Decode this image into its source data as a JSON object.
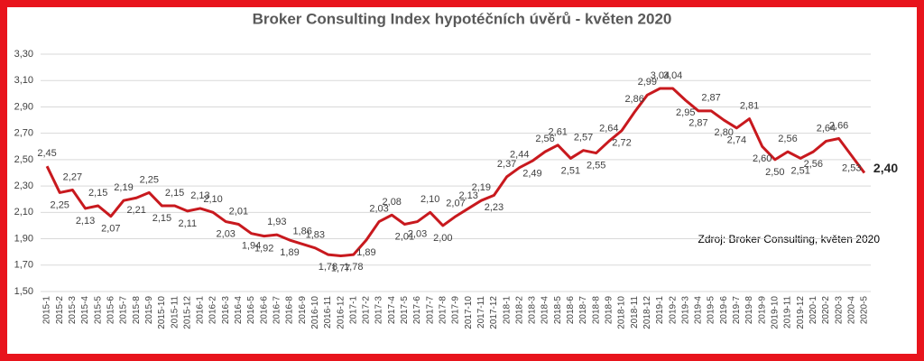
{
  "chart_data": {
    "type": "line",
    "title": "Broker Consulting Index hypotéčních úvěrů - květen 2020",
    "annotation": "Zdroj: Broker Consulting, květen 2020",
    "categories": [
      "2015-1",
      "2015-2",
      "2015-3",
      "2015-4",
      "2015-5",
      "2015-6",
      "2015-7",
      "2015-8",
      "2015-9",
      "2015-10",
      "2015-11",
      "2015-12",
      "2016-1",
      "2016-2",
      "2016-3",
      "2016-4",
      "2016-5",
      "2016-6",
      "2016-7",
      "2016-8",
      "2016-9",
      "2016-10",
      "2016-11",
      "2016-12",
      "2017-1",
      "2017-2",
      "2017-3",
      "2017-4",
      "2017-5",
      "2017-6",
      "2017-7",
      "2017-8",
      "2017-9",
      "2017-10",
      "2017-11",
      "2017-12",
      "2018-1",
      "2018-2",
      "2018-3",
      "2018-4",
      "2018-5",
      "2018-6",
      "2018-7",
      "2018-8",
      "2018-9",
      "2018-10",
      "2018-11",
      "2018-12",
      "2019-1",
      "2019-2",
      "2019-3",
      "2019-4",
      "2019-5",
      "2019-6",
      "2019-7",
      "2019-8",
      "2019-9",
      "2019-10",
      "2019-11",
      "2019-12",
      "2020-1",
      "2020-2",
      "2020-3",
      "2020-4",
      "2020-5"
    ],
    "series": [
      {
        "name": "Index",
        "color": "#c8191e",
        "values": [
          2.45,
          2.25,
          2.27,
          2.13,
          2.15,
          2.07,
          2.19,
          2.21,
          2.25,
          2.15,
          2.15,
          2.11,
          2.13,
          2.1,
          2.03,
          2.01,
          1.94,
          1.92,
          1.93,
          1.89,
          1.86,
          1.83,
          1.78,
          1.77,
          1.78,
          1.89,
          2.03,
          2.08,
          2.01,
          2.03,
          2.1,
          2.0,
          2.07,
          2.13,
          2.19,
          2.23,
          2.37,
          2.44,
          2.49,
          2.56,
          2.61,
          2.51,
          2.57,
          2.55,
          2.64,
          2.72,
          2.86,
          2.99,
          3.04,
          3.04,
          2.95,
          2.87,
          2.87,
          2.8,
          2.74,
          2.81,
          2.6,
          2.5,
          2.56,
          2.51,
          2.56,
          2.64,
          2.66,
          2.53,
          2.4
        ],
        "value_labels": [
          "2,45",
          "2,25",
          "2,27",
          "2,13",
          "2,15",
          "2,07",
          "2,19",
          "2,21",
          "2,25",
          "2,15",
          "2,15",
          "2,11",
          "2,13",
          "2,10",
          "2,03",
          "2,01",
          "1,94",
          "1,92",
          "1,93",
          "1,89",
          "1,86",
          "1,83",
          "1,78",
          "1,77",
          "1,78",
          "1,89",
          "2,03",
          "2,08",
          "2,01",
          "2,03",
          "2,10",
          "2,00",
          "2,07",
          "2,13",
          "2,19",
          "2,23",
          "2,37",
          "2,44",
          "2,49",
          "2,56",
          "2,61",
          "2,51",
          "2,57",
          "2,55",
          "2,64",
          "2,72",
          "2,86",
          "2,99",
          "3,04",
          "3,04",
          "2,95",
          "2,87",
          "2,87",
          "2,80",
          "2,74",
          "2,81",
          "2,60",
          "2,50",
          "2,56",
          "2,51",
          "2,56",
          "2,64",
          "2,66",
          "2,53",
          "2,40"
        ]
      }
    ],
    "ylim": [
      1.5,
      3.3
    ],
    "yticks": [
      {
        "value": 1.5,
        "label": "1,50"
      },
      {
        "value": 1.7,
        "label": "1,70"
      },
      {
        "value": 1.9,
        "label": "1,90"
      },
      {
        "value": 2.1,
        "label": "2,10"
      },
      {
        "value": 2.3,
        "label": "2,30"
      },
      {
        "value": 2.5,
        "label": "2,50"
      },
      {
        "value": 2.7,
        "label": "2,70"
      },
      {
        "value": 2.9,
        "label": "2,90"
      },
      {
        "value": 3.1,
        "label": "3,10"
      },
      {
        "value": 3.3,
        "label": "3,30"
      }
    ],
    "grid": true
  }
}
